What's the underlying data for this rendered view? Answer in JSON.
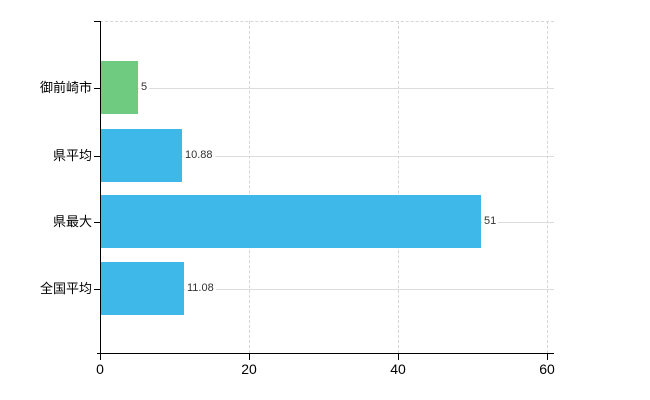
{
  "chart_data": {
    "type": "bar",
    "orientation": "horizontal",
    "title": "",
    "xlabel": "",
    "ylabel": "",
    "categories": [
      "御前崎市",
      "県平均",
      "県最大",
      "全国平均"
    ],
    "values": [
      5,
      10.88,
      51,
      11.08
    ],
    "value_labels": [
      "5",
      "10.88",
      "51",
      "11.08"
    ],
    "bar_colors": [
      "#6ecb80",
      "#3eb8e9",
      "#3eb8e9",
      "#3eb8e9"
    ],
    "xlim": [
      0,
      60
    ],
    "x_ticks": [
      0,
      20,
      40,
      60
    ],
    "x_tick_labels": [
      "0",
      "20",
      "40",
      "60"
    ],
    "grid": true,
    "legend": null,
    "colors": {
      "grid_horizontal": "#dcdcdc",
      "grid_vertical": "#d6d6d6",
      "axis": "#000000",
      "category_text": "#000000",
      "value_text": "#333333",
      "background": "#ffffff"
    }
  }
}
